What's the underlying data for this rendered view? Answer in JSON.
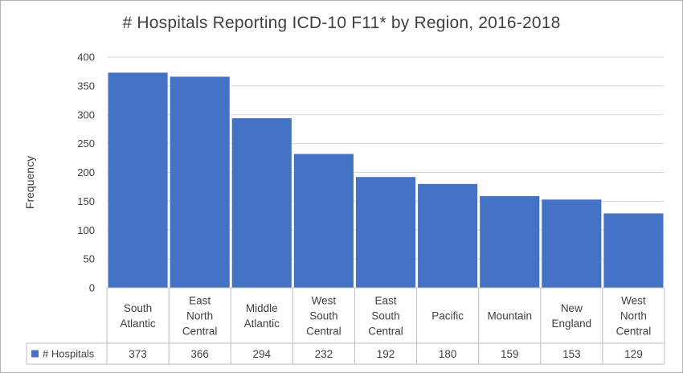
{
  "chart_data": {
    "type": "bar",
    "title": "# Hospitals Reporting ICD-10 F11* by Region, 2016-2018",
    "xlabel": "",
    "ylabel": "Frequency",
    "ylim": [
      0,
      400
    ],
    "yticks": [
      0,
      50,
      100,
      150,
      200,
      250,
      300,
      350,
      400
    ],
    "grid": true,
    "legend": "data table row",
    "categories": [
      [
        "South",
        "Atlantic"
      ],
      [
        "East",
        "North",
        "Central"
      ],
      [
        "Middle",
        "Atlantic"
      ],
      [
        "West",
        "South",
        "Central"
      ],
      [
        "East",
        "South",
        "Central"
      ],
      [
        "Pacific"
      ],
      [
        "Mountain"
      ],
      [
        "New",
        "England"
      ],
      [
        "West",
        "North",
        "Central"
      ]
    ],
    "series": [
      {
        "name": "# Hospitals",
        "values": [
          373,
          366,
          294,
          232,
          192,
          180,
          159,
          153,
          129
        ],
        "color": "#4472c4"
      }
    ]
  }
}
